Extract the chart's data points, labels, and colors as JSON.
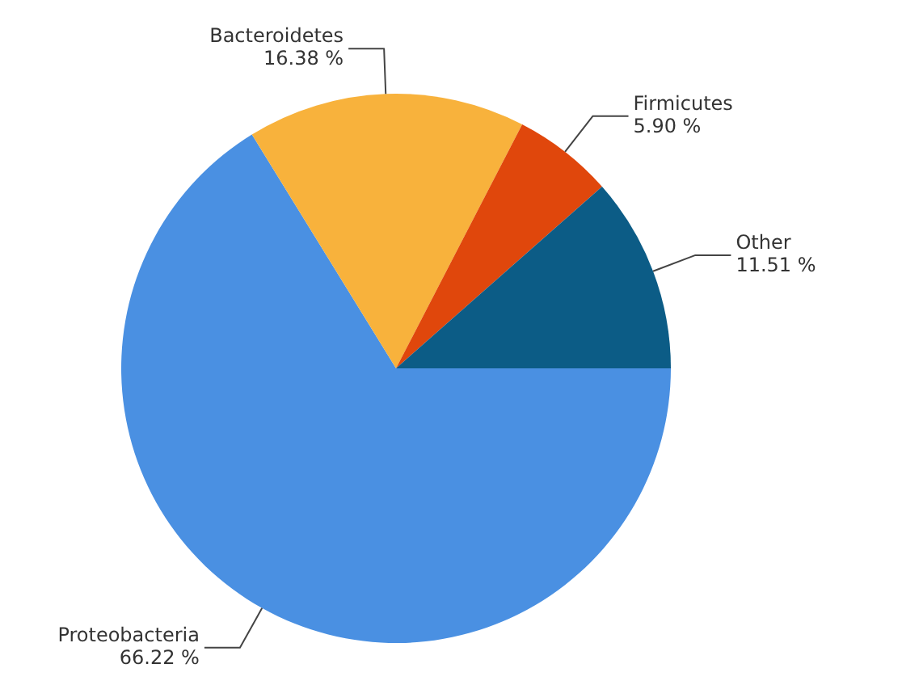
{
  "chart_data": {
    "type": "pie",
    "categories": [
      "Proteobacteria",
      "Bacteroidetes",
      "Firmicutes",
      "Other"
    ],
    "values": [
      66.22,
      16.38,
      5.9,
      11.51
    ],
    "colors": [
      "#4a90e2",
      "#f8b23c",
      "#e0470c",
      "#0c5c86"
    ],
    "value_labels": [
      "66.22 %",
      "16.38 %",
      "5.90 %",
      "11.51 %"
    ],
    "legend": false
  }
}
